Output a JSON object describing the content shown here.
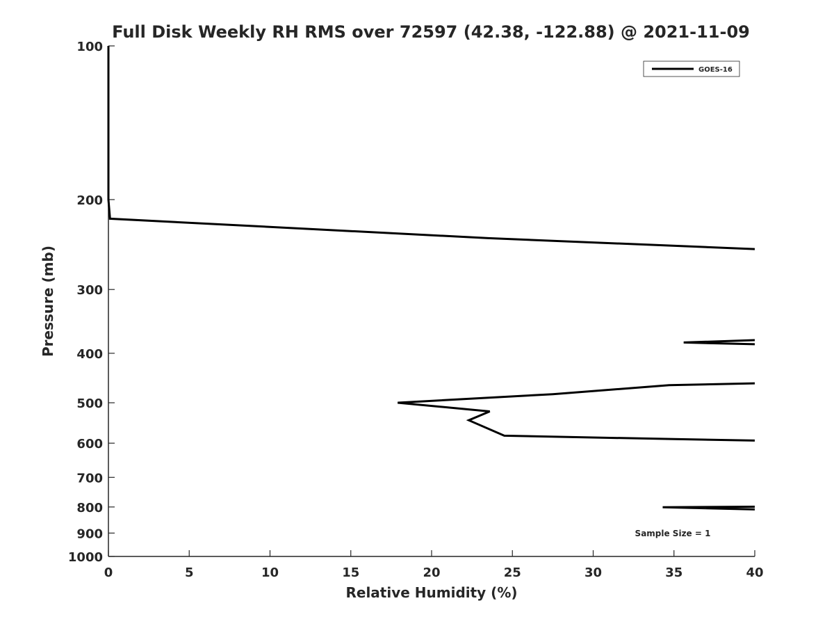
{
  "chart_data": {
    "type": "line",
    "title": "Full Disk Weekly RH RMS over 72597 (42.38, -122.88) @ 2021-11-09",
    "xlabel": "Relative Humidity (%)",
    "ylabel": "Pressure (mb)",
    "xlim": [
      0,
      40
    ],
    "ylim": [
      100,
      1000
    ],
    "yscale": "log",
    "y_reversed": true,
    "grid": false,
    "legend": "top-right",
    "line_color": "#000000",
    "x_ticks": [
      "0",
      "5",
      "10",
      "15",
      "20",
      "25",
      "30",
      "35",
      "40"
    ],
    "y_ticks": [
      {
        "value": 100,
        "label": "100"
      },
      {
        "value": 200,
        "label": "200"
      },
      {
        "value": 300,
        "label": "300"
      },
      {
        "value": 400,
        "label": "400"
      },
      {
        "value": 500,
        "label": "500"
      },
      {
        "value": 600,
        "label": "600"
      },
      {
        "value": 700,
        "label": "700"
      },
      {
        "value": 800,
        "label": "800"
      },
      {
        "value": 900,
        "label": "900"
      },
      {
        "value": 1000,
        "label": "1000"
      }
    ],
    "series": [
      {
        "name": "GOES-16",
        "segments": [
          [
            [
              0,
              100
            ],
            [
              0,
              150
            ],
            [
              0,
              200
            ],
            [
              0.1,
              218
            ],
            [
              23.5,
              238
            ],
            [
              40,
              250
            ]
          ],
          [
            [
              40,
              377
            ],
            [
              35.6,
              381
            ],
            [
              40,
              384
            ]
          ],
          [
            [
              40,
              458
            ],
            [
              34.7,
              462
            ],
            [
              27.5,
              481
            ],
            [
              17.9,
              500
            ],
            [
              23.6,
              520
            ],
            [
              22.3,
              541
            ],
            [
              24.5,
              580
            ],
            [
              35,
              589
            ],
            [
              40,
              593
            ]
          ],
          [
            [
              40,
              799
            ],
            [
              34.3,
              801
            ],
            [
              40,
              809
            ]
          ]
        ]
      }
    ],
    "annotations": [
      "Sample Size = 1"
    ]
  }
}
